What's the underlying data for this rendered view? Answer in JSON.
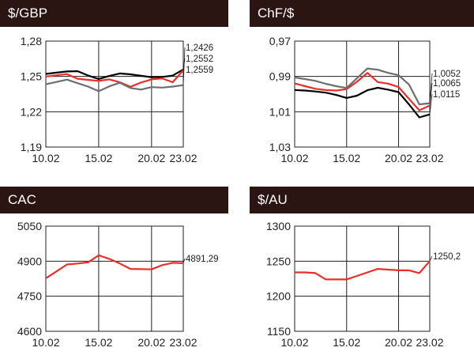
{
  "colors": {
    "header_bg": "#2a1512",
    "black": "#000000",
    "red": "#e8302a",
    "gray": "#6d6e70"
  },
  "chart_data": [
    {
      "type": "line",
      "title": "$/GBP",
      "x_ticks": [
        "10.02",
        "15.02",
        "20.02",
        "23.02"
      ],
      "y_ticks": [
        "1,28",
        "1,25",
        "1,22",
        "1,19"
      ],
      "ylim": [
        1.19,
        1.28
      ],
      "y_inverted": false,
      "grid": true,
      "x": [
        "10.02",
        "11.02",
        "12.02",
        "13.02",
        "14.02",
        "15.02",
        "16.02",
        "17.02",
        "18.02",
        "19.02",
        "20.02",
        "21.02",
        "22.02",
        "23.02"
      ],
      "series": [
        {
          "color": "#000000",
          "end_label": "1,2559",
          "values": [
            1.2521,
            1.2532,
            1.2542,
            1.2545,
            1.2508,
            1.2478,
            1.2504,
            1.2525,
            1.2518,
            1.2505,
            1.2494,
            1.2496,
            1.2507,
            1.2559
          ]
        },
        {
          "color": "#e8302a",
          "end_label": "1,2552",
          "values": [
            1.2499,
            1.251,
            1.252,
            1.248,
            1.2471,
            1.2462,
            1.2475,
            1.2451,
            1.2412,
            1.2448,
            1.2475,
            1.2483,
            1.2451,
            1.2552
          ]
        },
        {
          "color": "#6d6e70",
          "end_label": "1,2426",
          "values": [
            1.2433,
            1.2453,
            1.2473,
            1.2443,
            1.2414,
            1.2374,
            1.2416,
            1.2447,
            1.2402,
            1.2388,
            1.2409,
            1.2405,
            1.2414,
            1.2426
          ]
        }
      ]
    },
    {
      "type": "line",
      "title": "ChF/$",
      "x_ticks": [
        "10.02",
        "15.02",
        "20.02",
        "23.02"
      ],
      "y_ticks": [
        "0,97",
        "0,99",
        "1,01",
        "1,03"
      ],
      "ylim": [
        0.97,
        1.03
      ],
      "y_inverted": true,
      "grid": true,
      "x": [
        "10.02",
        "11.02",
        "12.02",
        "13.02",
        "14.02",
        "15.02",
        "16.02",
        "17.02",
        "18.02",
        "19.02",
        "20.02",
        "21.02",
        "22.02",
        "23.02"
      ],
      "series": [
        {
          "color": "#000000",
          "end_label": "1,0115",
          "values": [
            0.9977,
            0.998,
            0.9985,
            0.9992,
            1.0005,
            1.0022,
            1.0009,
            0.9978,
            0.9964,
            0.9975,
            0.9989,
            1.0058,
            1.0132,
            1.0115
          ]
        },
        {
          "color": "#e8302a",
          "end_label": "1,0065",
          "values": [
            0.994,
            0.9955,
            0.997,
            0.9977,
            0.998,
            0.9972,
            0.993,
            0.988,
            0.9932,
            0.9941,
            0.996,
            1.0027,
            1.0092,
            1.0065
          ]
        },
        {
          "color": "#6d6e70",
          "end_label": "1,0052",
          "values": [
            0.9906,
            0.9915,
            0.9925,
            0.9942,
            0.9955,
            0.9965,
            0.991,
            0.9855,
            0.9862,
            0.988,
            0.9893,
            0.9946,
            1.0058,
            1.0052
          ]
        }
      ]
    },
    {
      "type": "line",
      "title": "CAC",
      "x_ticks": [
        "10.02",
        "15.02",
        "20.02",
        "23.02"
      ],
      "y_ticks": [
        "5050",
        "4900",
        "4750",
        "4600"
      ],
      "ylim": [
        4600,
        5050
      ],
      "y_inverted": false,
      "grid": true,
      "x": [
        "10.02",
        "11.02",
        "12.02",
        "13.02",
        "14.02",
        "15.02",
        "16.02",
        "17.02",
        "18.02",
        "19.02",
        "20.02",
        "21.02",
        "22.02",
        "23.02"
      ],
      "series": [
        {
          "color": "#e8302a",
          "end_label": "4891,29",
          "values": [
            4827,
            4856,
            4886,
            4890,
            4895,
            4925,
            4910,
            4890,
            4867,
            4866,
            4865,
            4883,
            4893,
            4891.29
          ]
        }
      ]
    },
    {
      "type": "line",
      "title": "$/AU",
      "x_ticks": [
        "10.02",
        "15.02",
        "20.02",
        "23.02"
      ],
      "y_ticks": [
        "1300",
        "1250",
        "1200",
        "1150"
      ],
      "ylim": [
        1150,
        1300
      ],
      "y_inverted": false,
      "grid": true,
      "x": [
        "10.02",
        "11.02",
        "12.02",
        "13.02",
        "14.02",
        "15.02",
        "16.02",
        "17.02",
        "18.02",
        "19.02",
        "20.02",
        "21.02",
        "22.02",
        "23.02"
      ],
      "series": [
        {
          "color": "#e8302a",
          "end_label": "1250,2",
          "values": [
            1234,
            1234,
            1233,
            1224,
            1224,
            1224,
            1229,
            1234,
            1239,
            1238,
            1237,
            1237,
            1233,
            1250.2
          ]
        }
      ]
    }
  ]
}
